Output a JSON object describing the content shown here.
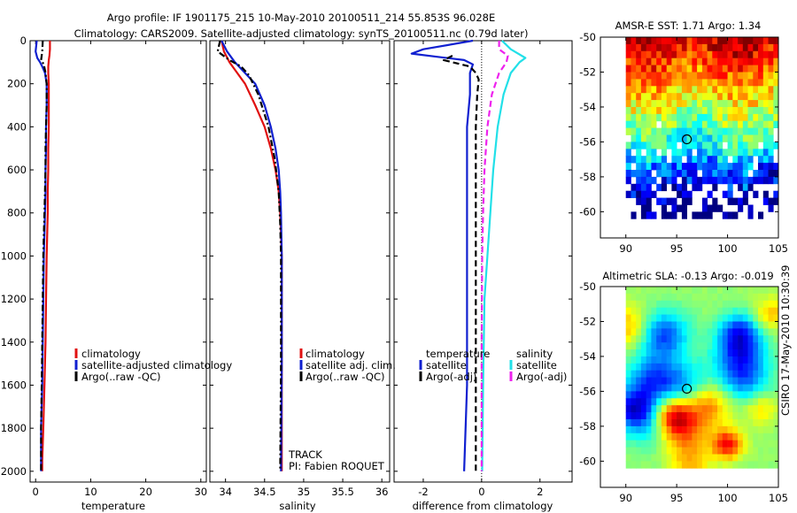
{
  "header": {
    "line1": "Argo profile: IF 1901175_215 10-May-2010 20100511_214 55.853S 96.028E",
    "line2": "Climatology: CARS2009. Satellite-adjusted climatology: synTS_20100511.nc (0.79d later)"
  },
  "footer": {
    "watermark": "CSIRO 17-May-2010 10:30:39",
    "track": "TRACK",
    "pi": "PI: Fabien ROQUET"
  },
  "colors": {
    "climatology": "#e01010",
    "satellite": "#1020d0",
    "argo": "#000000",
    "salinity_satellite": "#22e0e8",
    "salinity_argo": "#ee22ee"
  },
  "chart_data": [
    {
      "type": "line",
      "panel": "temperature",
      "xlabel": "temperature",
      "xlim": [
        -1,
        31
      ],
      "ylim": [
        2050,
        0
      ],
      "xticks": [
        0,
        10,
        20,
        30
      ],
      "yticks": [
        0,
        200,
        400,
        600,
        800,
        1000,
        1200,
        1400,
        1600,
        1800,
        2000
      ],
      "legend": [
        "climatology",
        "satellite-adjusted climatology",
        "Argo(..raw -QC)"
      ],
      "series": [
        {
          "name": "climatology",
          "color": "#e01010",
          "style": "solid",
          "points": [
            [
              2.6,
              0
            ],
            [
              2.6,
              40
            ],
            [
              2.5,
              70
            ],
            [
              2.4,
              90
            ],
            [
              2.3,
              120
            ],
            [
              2.3,
              150
            ],
            [
              2.4,
              200
            ],
            [
              2.4,
              300
            ],
            [
              2.4,
              400
            ],
            [
              2.3,
              500
            ],
            [
              2.3,
              600
            ],
            [
              2.2,
              700
            ],
            [
              2.2,
              800
            ],
            [
              2.1,
              900
            ],
            [
              2.0,
              1000
            ],
            [
              1.9,
              1200
            ],
            [
              1.8,
              1400
            ],
            [
              1.6,
              1600
            ],
            [
              1.4,
              1800
            ],
            [
              1.2,
              1950
            ],
            [
              1.2,
              2000
            ]
          ]
        },
        {
          "name": "satellite-adjusted climatology",
          "color": "#1020d0",
          "style": "solid",
          "points": [
            [
              0.2,
              0
            ],
            [
              0.0,
              50
            ],
            [
              0.3,
              80
            ],
            [
              0.8,
              100
            ],
            [
              1.2,
              120
            ],
            [
              1.7,
              150
            ],
            [
              2.0,
              200
            ],
            [
              2.0,
              300
            ],
            [
              1.9,
              400
            ],
            [
              1.9,
              500
            ],
            [
              1.8,
              600
            ],
            [
              1.8,
              700
            ],
            [
              1.7,
              800
            ],
            [
              1.6,
              900
            ],
            [
              1.5,
              1000
            ],
            [
              1.4,
              1200
            ],
            [
              1.3,
              1400
            ],
            [
              1.2,
              1600
            ],
            [
              1.0,
              1800
            ],
            [
              1.0,
              2000
            ]
          ]
        },
        {
          "name": "Argo(..raw -QC)",
          "color": "#000000",
          "style": "dashdot",
          "points": [
            [
              1.3,
              0
            ],
            [
              1.2,
              50
            ],
            [
              1.0,
              90
            ],
            [
              1.5,
              110
            ],
            [
              1.8,
              150
            ],
            [
              2.0,
              200
            ],
            [
              2.0,
              300
            ],
            [
              1.9,
              400
            ],
            [
              1.8,
              500
            ],
            [
              1.8,
              600
            ],
            [
              1.7,
              700
            ],
            [
              1.6,
              800
            ],
            [
              1.5,
              900
            ],
            [
              1.4,
              1000
            ],
            [
              1.3,
              1200
            ],
            [
              1.2,
              1400
            ],
            [
              1.1,
              1600
            ],
            [
              1.0,
              1800
            ],
            [
              1.0,
              2000
            ]
          ]
        }
      ]
    },
    {
      "type": "line",
      "panel": "salinity",
      "xlabel": "salinity",
      "xlim": [
        33.8,
        36.1
      ],
      "ylim": [
        2050,
        0
      ],
      "xticks": [
        34,
        34.5,
        35,
        35.5,
        36
      ],
      "legend": [
        "climatology",
        "satellite adj. clim.",
        "Argo(..raw -QC)"
      ],
      "series": [
        {
          "name": "climatology",
          "color": "#e01010",
          "style": "solid",
          "points": [
            [
              33.95,
              0
            ],
            [
              33.98,
              50
            ],
            [
              34.05,
              100
            ],
            [
              34.15,
              150
            ],
            [
              34.25,
              200
            ],
            [
              34.38,
              300
            ],
            [
              34.5,
              400
            ],
            [
              34.58,
              500
            ],
            [
              34.64,
              600
            ],
            [
              34.68,
              700
            ],
            [
              34.7,
              800
            ],
            [
              34.71,
              900
            ],
            [
              34.72,
              1000
            ],
            [
              34.72,
              1500
            ],
            [
              34.72,
              2000
            ]
          ]
        },
        {
          "name": "satellite adj. clim.",
          "color": "#1020d0",
          "style": "solid",
          "points": [
            [
              33.95,
              0
            ],
            [
              34.02,
              50
            ],
            [
              34.12,
              100
            ],
            [
              34.25,
              150
            ],
            [
              34.38,
              200
            ],
            [
              34.5,
              300
            ],
            [
              34.58,
              400
            ],
            [
              34.64,
              500
            ],
            [
              34.68,
              600
            ],
            [
              34.7,
              700
            ],
            [
              34.71,
              800
            ],
            [
              34.72,
              1000
            ],
            [
              34.72,
              1500
            ],
            [
              34.71,
              2000
            ]
          ]
        },
        {
          "name": "Argo(..raw -QC)",
          "color": "#000000",
          "style": "dashdot",
          "points": [
            [
              33.93,
              0
            ],
            [
              33.9,
              50
            ],
            [
              34.05,
              90
            ],
            [
              34.2,
              120
            ],
            [
              34.3,
              160
            ],
            [
              34.42,
              250
            ],
            [
              34.55,
              400
            ],
            [
              34.63,
              550
            ],
            [
              34.68,
              700
            ],
            [
              34.7,
              850
            ],
            [
              34.71,
              1000
            ],
            [
              34.71,
              1500
            ],
            [
              34.7,
              2000
            ]
          ]
        }
      ]
    },
    {
      "type": "line",
      "panel": "difference",
      "xlabel": "difference from climatology",
      "xlim": [
        -3,
        3.1
      ],
      "ylim": [
        2050,
        0
      ],
      "xticks": [
        -2,
        0,
        2
      ],
      "legend_groups": [
        {
          "title": "temperature",
          "entries": [
            "satellite",
            "Argo(-adj)"
          ]
        },
        {
          "title": "salinity",
          "entries": [
            "satellite",
            "Argo(-adj)"
          ]
        }
      ],
      "series": [
        {
          "name": "temperature satellite",
          "color": "#1020d0",
          "style": "solid",
          "points": [
            [
              -0.3,
              0
            ],
            [
              -2.0,
              40
            ],
            [
              -2.4,
              60
            ],
            [
              -1.5,
              75
            ],
            [
              -0.6,
              90
            ],
            [
              -0.3,
              110
            ],
            [
              -0.4,
              150
            ],
            [
              -0.4,
              250
            ],
            [
              -0.5,
              400
            ],
            [
              -0.5,
              800
            ],
            [
              -0.5,
              1200
            ],
            [
              -0.5,
              1600
            ],
            [
              -0.6,
              2000
            ]
          ]
        },
        {
          "name": "temperature Argo(-adj)",
          "color": "#000000",
          "style": "dashed",
          "points": [
            [
              -1.0,
              70
            ],
            [
              -1.3,
              90
            ],
            [
              -0.4,
              120
            ],
            [
              -0.2,
              150
            ],
            [
              -0.1,
              180
            ],
            [
              -0.15,
              250
            ],
            [
              -0.2,
              400
            ],
            [
              -0.2,
              800
            ],
            [
              -0.2,
              1200
            ],
            [
              -0.2,
              1600
            ],
            [
              -0.2,
              2000
            ]
          ]
        },
        {
          "name": "salinity satellite",
          "color": "#22e0e8",
          "style": "solid",
          "points": [
            [
              0.7,
              0
            ],
            [
              1.0,
              40
            ],
            [
              1.5,
              80
            ],
            [
              1.3,
              100
            ],
            [
              1.0,
              150
            ],
            [
              0.75,
              250
            ],
            [
              0.55,
              400
            ],
            [
              0.4,
              600
            ],
            [
              0.3,
              800
            ],
            [
              0.2,
              1000
            ],
            [
              0.1,
              1200
            ],
            [
              0.05,
              1600
            ],
            [
              0.02,
              2000
            ]
          ]
        },
        {
          "name": "salinity Argo(-adj)",
          "color": "#ee22ee",
          "style": "dashed",
          "points": [
            [
              0.6,
              0
            ],
            [
              0.6,
              40
            ],
            [
              0.9,
              70
            ],
            [
              0.85,
              100
            ],
            [
              0.6,
              150
            ],
            [
              0.35,
              250
            ],
            [
              0.2,
              400
            ],
            [
              0.1,
              600
            ],
            [
              0.05,
              800
            ],
            [
              0.02,
              1000
            ],
            [
              0.0,
              1400
            ],
            [
              0.0,
              2000
            ]
          ]
        }
      ]
    },
    {
      "type": "heatmap",
      "panel": "sst",
      "title": "AMSR-E SST: 1.71 Argo: 1.34",
      "xlim": [
        87.5,
        105
      ],
      "ylim": [
        -61.5,
        -50
      ],
      "xticks": [
        90,
        95,
        100,
        105
      ],
      "yticks": [
        -50,
        -52,
        -54,
        -56,
        -58,
        -60
      ],
      "marker": {
        "lon": 96.0,
        "lat": -55.85
      }
    },
    {
      "type": "heatmap",
      "panel": "sla",
      "title": "Altimetric SLA: -0.13 Argo: -0.019",
      "xlim": [
        87.5,
        105
      ],
      "ylim": [
        -61.5,
        -50
      ],
      "xticks": [
        90,
        95,
        100,
        105
      ],
      "yticks": [
        -50,
        -52,
        -54,
        -56,
        -58,
        -60
      ],
      "marker": {
        "lon": 96.0,
        "lat": -55.85
      }
    }
  ]
}
